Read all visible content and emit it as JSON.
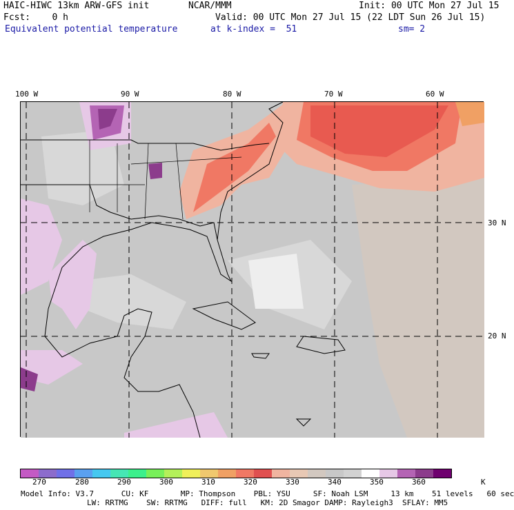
{
  "header": {
    "model": "HAIC-HIWC 13km ARW-GFS init",
    "org": "NCAR/MMM",
    "init": "Init: 00 UTC Mon 27 Jul 15",
    "fcst": "Fcst:    0 h",
    "valid": "Valid: 00 UTC Mon 27 Jul 15 (22 LDT Sun 26 Jul 15)",
    "field": "Equivalent potential temperature",
    "level": "at k-index =  51",
    "smooth": "sm= 2"
  },
  "map": {
    "lon_labels": [
      "100 W",
      "90 W",
      "80 W",
      "70 W",
      "60 W"
    ],
    "lat_labels": [
      "30 N",
      "20 N"
    ]
  },
  "colorbar": {
    "colors": [
      "#c45ac4",
      "#8c6ccc",
      "#7070e8",
      "#5aa0f0",
      "#46c8f0",
      "#46e6b4",
      "#3cf08c",
      "#78f05a",
      "#b4f05a",
      "#f0f05a",
      "#f0c86e",
      "#f0a064",
      "#f07864",
      "#e05050",
      "#f0b4a0",
      "#e8c8b4",
      "#d2c8c0",
      "#c8c8c8",
      "#d2d2d2",
      "#ffffff",
      "#e6c8e6",
      "#b464b4",
      "#8c3c8c",
      "#6e006e"
    ],
    "labels": [
      "270",
      "280",
      "290",
      "300",
      "310",
      "320",
      "330",
      "340",
      "350",
      "360"
    ],
    "unit": "K"
  },
  "footer": {
    "line1": "Model Info: V3.7      CU: KF       MP: Thompson    PBL: YSU     SF: Noah LSM     13 km    51 levels   60 sec",
    "line2": "LW: RRTMG    SW: RRTMG   DIFF: full   KM: 2D Smagor DAMP: Rayleigh3  SFLAY: MM5"
  }
}
